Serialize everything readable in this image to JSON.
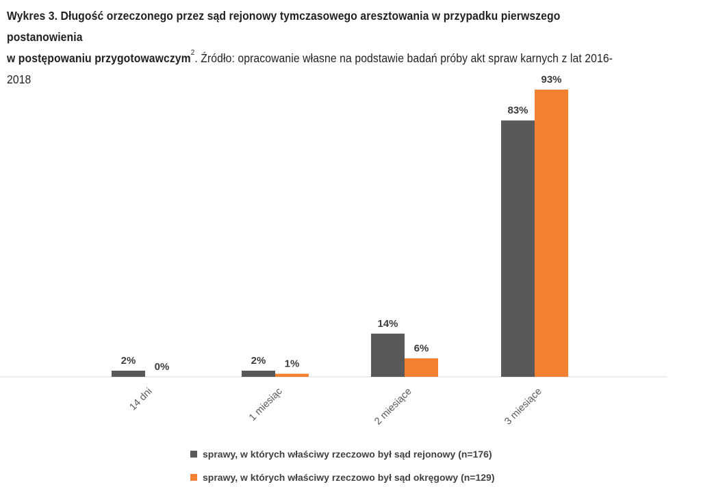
{
  "caption": {
    "bold_part_1": "Wykres 3. Długość orzeczonego przez sąd rejonowy tymczasowego aresztowania w przypadku pierwszego postanowienia",
    "bold_part_2": "w postępowaniu przygotowawczym",
    "footnote": "2",
    "source": ". Źródło: opracowanie własne na podstawie badań próby akt spraw karnych z lat 2016-2018"
  },
  "chart_data": {
    "type": "bar",
    "categories": [
      "14 dni",
      "1 miesiąc",
      "2 miesiące",
      "3 miesiące"
    ],
    "series": [
      {
        "name": "sprawy, w których właściwy rzeczowo był sąd rejonowy (n=176)",
        "values": [
          2,
          2,
          14,
          83
        ],
        "labels": [
          "2%",
          "2%",
          "14%",
          "83%"
        ],
        "color": "#595959"
      },
      {
        "name": "sprawy, w których właściwy rzeczowo był sąd okręgowy (n=129)",
        "values": [
          0,
          1,
          6,
          93
        ],
        "labels": [
          "0%",
          "1%",
          "6%",
          "93%"
        ],
        "color": "#f28131"
      }
    ],
    "ylim": [
      0,
      93
    ],
    "grid": false,
    "legend_position": "bottom"
  }
}
